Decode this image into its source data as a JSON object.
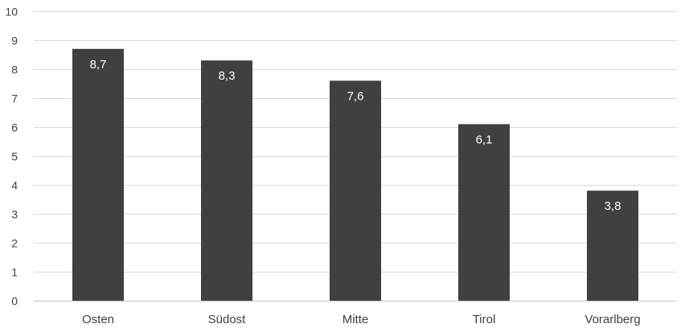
{
  "chart_data": {
    "type": "bar",
    "categories": [
      "Osten",
      "Südost",
      "Mitte",
      "Tirol",
      "Vorarlberg"
    ],
    "values": [
      8.7,
      8.3,
      7.6,
      6.1,
      3.8
    ],
    "data_labels": [
      "8,7",
      "8,3",
      "7,6",
      "6,1",
      "3,8"
    ],
    "ylim": [
      0,
      10
    ],
    "yticks": [
      0,
      1,
      2,
      3,
      4,
      5,
      6,
      7,
      8,
      9,
      10
    ],
    "grid": true,
    "legend": "none",
    "colors": {
      "bar": "#404040",
      "grid": "#d9d9d9",
      "text": "#404040",
      "label": "#ffffff"
    }
  }
}
